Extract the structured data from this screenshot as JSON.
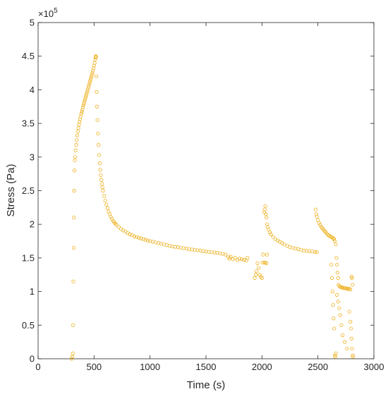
{
  "chart_data": {
    "type": "scatter",
    "title": "",
    "xlabel": "Time (s)",
    "ylabel": "Stress (Pa)",
    "xlim": [
      0,
      3000
    ],
    "ylim": [
      0,
      500000
    ],
    "y_multiplier": "×10",
    "y_multiplier_exponent": "5",
    "x_ticks": [
      0,
      500,
      1000,
      1500,
      2000,
      2500,
      3000
    ],
    "x_tick_labels": [
      "0",
      "500",
      "1000",
      "1500",
      "2000",
      "2500",
      "3000"
    ],
    "y_ticks": [
      0,
      50000,
      100000,
      150000,
      200000,
      250000,
      300000,
      350000,
      400000,
      450000,
      500000
    ],
    "y_tick_labels": [
      "0",
      "0.5",
      "1",
      "1.5",
      "2",
      "2.5",
      "3",
      "3.5",
      "4",
      "4.5",
      "5"
    ],
    "grid": false,
    "marker": "open-circle",
    "marker_color": "#EDB120",
    "series": [
      {
        "values": [
          [
            300,
            0
          ],
          [
            305,
            3000
          ],
          [
            310,
            8000
          ],
          [
            312,
            50000
          ],
          [
            315,
            115000
          ],
          [
            318,
            165000
          ],
          [
            320,
            210000
          ],
          [
            322,
            250000
          ],
          [
            325,
            280000
          ],
          [
            328,
            295000
          ],
          [
            330,
            300000
          ],
          [
            335,
            310000
          ],
          [
            340,
            318000
          ],
          [
            345,
            325000
          ],
          [
            350,
            332000
          ],
          [
            355,
            338000
          ],
          [
            360,
            343000
          ],
          [
            365,
            348000
          ],
          [
            370,
            352000
          ],
          [
            375,
            356000
          ],
          [
            380,
            360000
          ],
          [
            385,
            364000
          ],
          [
            390,
            367000
          ],
          [
            395,
            370000
          ],
          [
            400,
            374000
          ],
          [
            405,
            377000
          ],
          [
            410,
            380000
          ],
          [
            415,
            383000
          ],
          [
            420,
            386000
          ],
          [
            425,
            389000
          ],
          [
            430,
            392000
          ],
          [
            435,
            395000
          ],
          [
            440,
            398000
          ],
          [
            445,
            401000
          ],
          [
            450,
            404000
          ],
          [
            455,
            407000
          ],
          [
            460,
            410000
          ],
          [
            465,
            413000
          ],
          [
            470,
            416000
          ],
          [
            475,
            419000
          ],
          [
            480,
            422000
          ],
          [
            485,
            425000
          ],
          [
            490,
            428000
          ],
          [
            495,
            432000
          ],
          [
            500,
            436000
          ],
          [
            505,
            440000
          ],
          [
            510,
            445000
          ],
          [
            513,
            448000
          ],
          [
            515,
            450000
          ],
          [
            518,
            449000
          ],
          [
            520,
            420000
          ],
          [
            523,
            397000
          ],
          [
            526,
            375000
          ],
          [
            530,
            355000
          ],
          [
            535,
            335000
          ],
          [
            540,
            318000
          ],
          [
            545,
            303000
          ],
          [
            550,
            291000
          ],
          [
            555,
            281000
          ],
          [
            560,
            273000
          ],
          [
            565,
            266000
          ],
          [
            570,
            260000
          ],
          [
            575,
            255000
          ],
          [
            580,
            250000
          ],
          [
            590,
            242000
          ],
          [
            600,
            235000
          ],
          [
            610,
            229000
          ],
          [
            620,
            224000
          ],
          [
            630,
            219000
          ],
          [
            640,
            215000
          ],
          [
            650,
            211000
          ],
          [
            660,
            208000
          ],
          [
            670,
            205000
          ],
          [
            680,
            203000
          ],
          [
            690,
            201000
          ],
          [
            700,
            199000
          ],
          [
            720,
            196000
          ],
          [
            740,
            193000
          ],
          [
            760,
            191000
          ],
          [
            780,
            189000
          ],
          [
            800,
            187000
          ],
          [
            820,
            185000
          ],
          [
            840,
            184000
          ],
          [
            860,
            182000
          ],
          [
            880,
            181000
          ],
          [
            900,
            180000
          ],
          [
            920,
            179000
          ],
          [
            940,
            178000
          ],
          [
            960,
            177000
          ],
          [
            980,
            176000
          ],
          [
            1000,
            175000
          ],
          [
            1025,
            174000
          ],
          [
            1050,
            173000
          ],
          [
            1075,
            172000
          ],
          [
            1100,
            171000
          ],
          [
            1125,
            170000
          ],
          [
            1150,
            169000
          ],
          [
            1175,
            168000
          ],
          [
            1200,
            167000
          ],
          [
            1225,
            166500
          ],
          [
            1250,
            166000
          ],
          [
            1275,
            165000
          ],
          [
            1300,
            164500
          ],
          [
            1325,
            164000
          ],
          [
            1350,
            163000
          ],
          [
            1375,
            162500
          ],
          [
            1400,
            162000
          ],
          [
            1425,
            161500
          ],
          [
            1450,
            161000
          ],
          [
            1475,
            160000
          ],
          [
            1500,
            159500
          ],
          [
            1525,
            159000
          ],
          [
            1550,
            158500
          ],
          [
            1575,
            158000
          ],
          [
            1600,
            157500
          ],
          [
            1625,
            157000
          ],
          [
            1650,
            156000
          ],
          [
            1675,
            155000
          ],
          [
            1700,
            151000
          ],
          [
            1710,
            149000
          ],
          [
            1720,
            152000
          ],
          [
            1740,
            148000
          ],
          [
            1760,
            150000
          ],
          [
            1780,
            147000
          ],
          [
            1800,
            149000
          ],
          [
            1820,
            148000
          ],
          [
            1840,
            147000
          ],
          [
            1860,
            146000
          ],
          [
            1870,
            150000
          ],
          [
            1935,
            120000
          ],
          [
            1945,
            125000
          ],
          [
            1950,
            130000
          ],
          [
            1960,
            142000
          ],
          [
            1970,
            135000
          ],
          [
            1980,
            125000
          ],
          [
            1990,
            122000
          ],
          [
            2000,
            120000
          ],
          [
            2005,
            143000
          ],
          [
            2010,
            155000
          ],
          [
            2020,
            143000
          ],
          [
            2030,
            143000
          ],
          [
            2040,
            142000
          ],
          [
            2045,
            155000
          ],
          [
            2020,
            218000
          ],
          [
            2025,
            222000
          ],
          [
            2030,
            227000
          ],
          [
            2035,
            215000
          ],
          [
            2040,
            210000
          ],
          [
            2045,
            200000
          ],
          [
            2050,
            196000
          ],
          [
            2060,
            192000
          ],
          [
            2070,
            188000
          ],
          [
            2080,
            185000
          ],
          [
            2100,
            181000
          ],
          [
            2120,
            178000
          ],
          [
            2140,
            176000
          ],
          [
            2160,
            174000
          ],
          [
            2180,
            172000
          ],
          [
            2200,
            170000
          ],
          [
            2225,
            168000
          ],
          [
            2250,
            166000
          ],
          [
            2275,
            165000
          ],
          [
            2300,
            164000
          ],
          [
            2325,
            163000
          ],
          [
            2350,
            162000
          ],
          [
            2375,
            161000
          ],
          [
            2400,
            160500
          ],
          [
            2425,
            160000
          ],
          [
            2450,
            159500
          ],
          [
            2475,
            159000
          ],
          [
            2490,
            158500
          ],
          [
            2480,
            222000
          ],
          [
            2485,
            215000
          ],
          [
            2490,
            211000
          ],
          [
            2500,
            206000
          ],
          [
            2510,
            202000
          ],
          [
            2520,
            199000
          ],
          [
            2530,
            196000
          ],
          [
            2540,
            194000
          ],
          [
            2550,
            192000
          ],
          [
            2560,
            190000
          ],
          [
            2570,
            188000
          ],
          [
            2580,
            186000
          ],
          [
            2590,
            184000
          ],
          [
            2600,
            183000
          ],
          [
            2610,
            182000
          ],
          [
            2620,
            181000
          ],
          [
            2630,
            180000
          ],
          [
            2640,
            179000
          ],
          [
            2645,
            178000
          ],
          [
            2620,
            140000
          ],
          [
            2625,
            120000
          ],
          [
            2630,
            100000
          ],
          [
            2635,
            80000
          ],
          [
            2640,
            60000
          ],
          [
            2645,
            45000
          ],
          [
            2650,
            5000
          ],
          [
            2655,
            3000
          ],
          [
            2660,
            8000
          ],
          [
            2650,
            175000
          ],
          [
            2660,
            170000
          ],
          [
            2665,
            150000
          ],
          [
            2670,
            140000
          ],
          [
            2675,
            128000
          ],
          [
            2680,
            120000
          ],
          [
            2685,
            110000
          ],
          [
            2690,
            108000
          ],
          [
            2700,
            107000
          ],
          [
            2710,
            106000
          ],
          [
            2720,
            106000
          ],
          [
            2730,
            105000
          ],
          [
            2740,
            105000
          ],
          [
            2750,
            105000
          ],
          [
            2760,
            104000
          ],
          [
            2770,
            104000
          ],
          [
            2780,
            104000
          ],
          [
            2790,
            103000
          ],
          [
            2800,
            122000
          ],
          [
            2805,
            120000
          ],
          [
            2810,
            110000
          ],
          [
            2700,
            65000
          ],
          [
            2710,
            50000
          ],
          [
            2720,
            35000
          ],
          [
            2740,
            25000
          ],
          [
            2760,
            15000
          ],
          [
            2780,
            70000
          ],
          [
            2790,
            55000
          ],
          [
            2795,
            45000
          ],
          [
            2800,
            30000
          ],
          [
            2805,
            15000
          ],
          [
            2810,
            5000
          ],
          [
            2815,
            3000
          ],
          [
            2670,
            95000
          ],
          [
            2680,
            85000
          ],
          [
            2690,
            75000
          ]
        ]
      }
    ]
  }
}
